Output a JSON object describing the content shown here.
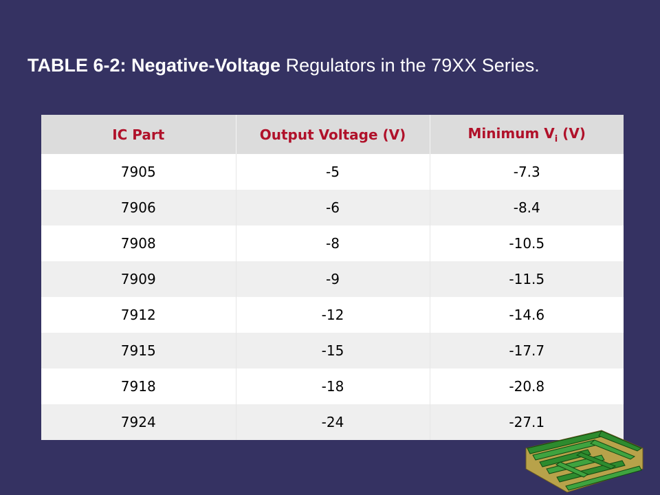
{
  "title": {
    "bold": "TABLE 6-2: Negative-Voltage",
    "rest": " Regulators in the 79XX Series."
  },
  "table": {
    "headers": {
      "col1": "IC Part",
      "col2": "Output Voltage (V)",
      "col3_pre": "Minimum V",
      "col3_sub": "i",
      "col3_post": " (V)"
    },
    "rows": [
      [
        "7905",
        "-5",
        "-7.3"
      ],
      [
        "7906",
        "-6",
        "-8.4"
      ],
      [
        "7908",
        "-8",
        "-10.5"
      ],
      [
        "7909",
        "-9",
        "-11.5"
      ],
      [
        "7912",
        "-12",
        "-14.6"
      ],
      [
        "7915",
        "-15",
        "-17.7"
      ],
      [
        "7918",
        "-18",
        "-20.8"
      ],
      [
        "7924",
        "-24",
        "-27.1"
      ]
    ]
  },
  "colors": {
    "background": "#353262",
    "header_text": "#b0112a",
    "logo_green": "#2e8b2e"
  },
  "logo": {
    "icon": "maze-logo-icon"
  }
}
